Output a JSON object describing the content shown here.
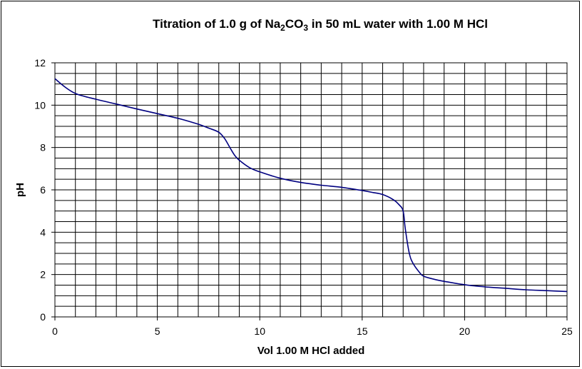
{
  "chart_data": {
    "type": "line",
    "title": {
      "prefix": "Titration of 1.0 g of Na",
      "sub1": "2",
      "mid": "CO",
      "sub2": "3",
      "suffix": " in 50 mL water with 1.00 M HCl"
    },
    "xlabel": "Vol 1.00 M HCl added",
    "ylabel": "pH",
    "xlim": [
      0,
      25
    ],
    "ylim": [
      0,
      12
    ],
    "x_ticks": [
      "0",
      "5",
      "10",
      "15",
      "20",
      "25"
    ],
    "y_ticks": [
      "0",
      "2",
      "4",
      "6",
      "8",
      "10",
      "12"
    ],
    "grid": true,
    "line_color": "#000080",
    "series": [
      {
        "x": [
          0,
          0.5,
          1,
          1.5,
          2,
          3,
          4,
          5,
          6,
          7,
          7.5,
          8,
          8.3,
          8.6,
          8.8,
          9,
          9.5,
          10,
          11,
          12,
          13,
          14,
          15,
          15.5,
          16,
          16.5,
          16.8,
          17,
          17.1,
          17.3,
          17.5,
          17.8,
          18,
          18.5,
          19,
          20,
          21,
          22,
          23,
          24,
          25
        ],
        "y": [
          11.25,
          10.85,
          10.55,
          10.4,
          10.28,
          10.05,
          9.82,
          9.6,
          9.38,
          9.1,
          8.92,
          8.72,
          8.4,
          7.9,
          7.6,
          7.4,
          7.05,
          6.85,
          6.55,
          6.35,
          6.22,
          6.12,
          5.97,
          5.88,
          5.78,
          5.55,
          5.3,
          5.0,
          4.2,
          3.0,
          2.5,
          2.1,
          1.92,
          1.78,
          1.68,
          1.52,
          1.42,
          1.35,
          1.28,
          1.24,
          1.2
        ]
      }
    ]
  }
}
